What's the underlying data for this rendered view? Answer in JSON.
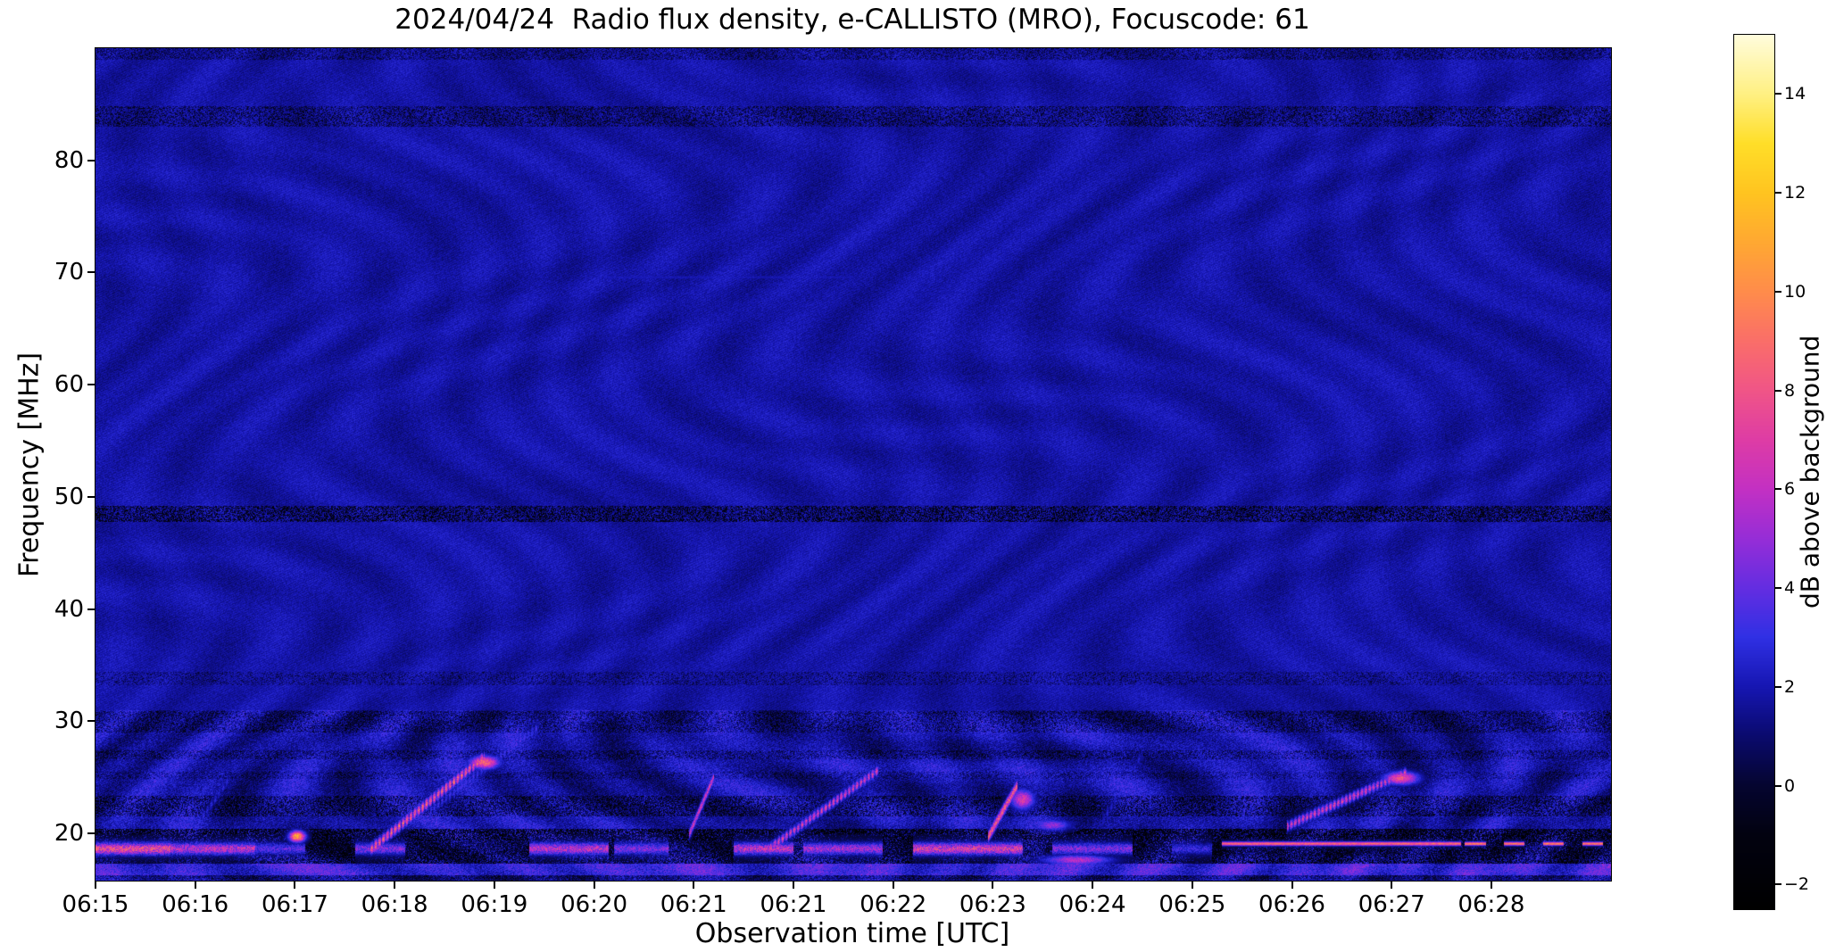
{
  "chart_data": {
    "type": "heatmap",
    "title": "2024/04/24  Radio flux density, e-CALLISTO (MRO), Focuscode: 61",
    "xlabel": "Observation time [UTC]",
    "ylabel": "Frequency [MHz]",
    "x_tick_labels": [
      "06:15",
      "06:16",
      "06:17",
      "06:18",
      "06:19",
      "06:20",
      "06:21",
      "06:21",
      "06:22",
      "06:23",
      "06:24",
      "06:25",
      "06:26",
      "06:27",
      "06:28"
    ],
    "x_span_tick_units": 15.2,
    "y_tick_values": [
      80,
      70,
      60,
      50,
      40,
      30,
      20
    ],
    "y_range_mhz": [
      15.8,
      90
    ],
    "colorbar": {
      "label": "dB above background",
      "tick_values": [
        -2,
        0,
        2,
        4,
        6,
        8,
        10,
        12,
        14
      ],
      "vmin": -2.5,
      "vmax": 15.2
    },
    "colormap_stops": [
      [
        -2.5,
        0,
        0,
        0
      ],
      [
        -1,
        2,
        2,
        16
      ],
      [
        0,
        5,
        5,
        48
      ],
      [
        1,
        10,
        10,
        110
      ],
      [
        2,
        22,
        22,
        178
      ],
      [
        3,
        48,
        48,
        228
      ],
      [
        4,
        100,
        45,
        225
      ],
      [
        5,
        150,
        45,
        215
      ],
      [
        6,
        195,
        48,
        195
      ],
      [
        7,
        222,
        60,
        165
      ],
      [
        8,
        240,
        85,
        135
      ],
      [
        9,
        250,
        110,
        105
      ],
      [
        10,
        255,
        140,
        75
      ],
      [
        11,
        255,
        168,
        50
      ],
      [
        12,
        255,
        196,
        32
      ],
      [
        13,
        255,
        222,
        40
      ],
      [
        14,
        255,
        240,
        130
      ],
      [
        15.2,
        255,
        252,
        220
      ]
    ],
    "background_level_db": 1.8,
    "features": {
      "dark_rows": [
        [
          89.0,
          90.0,
          1.2,
          0.5
        ],
        [
          83.0,
          84.9,
          1.6,
          0.45
        ],
        [
          47.8,
          49.2,
          2.4,
          0.55
        ],
        [
          33.2,
          34.4,
          1.1,
          0.35
        ],
        [
          29.0,
          30.9,
          1.4,
          0.45
        ],
        [
          26.6,
          27.4,
          1.3,
          0.4
        ],
        [
          24.8,
          25.5,
          1.0,
          0.35
        ],
        [
          21.5,
          23.3,
          1.9,
          0.5
        ],
        [
          19.35,
          20.35,
          2.8,
          0.75
        ],
        [
          17.95,
          19.35,
          2.0,
          0.8
        ],
        [
          17.25,
          17.95,
          2.4,
          0.6
        ],
        [
          15.8,
          16.25,
          1.2,
          0.5
        ]
      ],
      "bright_rows": [
        [
          16.25,
          17.25,
          1.3
        ]
      ],
      "lines": [
        {
          "f": 19.05,
          "th": 0.18,
          "u0": 11.3,
          "u1": 13.7,
          "I": 10,
          "dash": false
        },
        {
          "f": 19.05,
          "th": 0.16,
          "u0": 13.7,
          "u1": 15.2,
          "I": 11,
          "dash": true
        },
        {
          "f": 69.6,
          "th": 0.22,
          "u0": 5.0,
          "u1": 7.6,
          "I": 2.3,
          "dash": false
        }
      ],
      "bursts": [
        {
          "u0": 2.75,
          "f0": 18.5,
          "u1": 3.9,
          "f1": 26.8,
          "I": 11,
          "th": 0.5,
          "dot": true
        },
        {
          "u0": 3.35,
          "f0": 22.0,
          "u1": 4.45,
          "f1": 29.5,
          "I": 4,
          "th": 0.6,
          "dot": true
        },
        {
          "u0": 5.95,
          "f0": 19.8,
          "u1": 6.2,
          "f1": 25.0,
          "I": 8,
          "th": 0.45,
          "dot": false
        },
        {
          "u0": 6.75,
          "f0": 18.6,
          "u1": 7.85,
          "f1": 25.6,
          "I": 9,
          "th": 0.45,
          "dot": true
        },
        {
          "u0": 8.95,
          "f0": 19.6,
          "u1": 9.25,
          "f1": 24.3,
          "I": 10,
          "th": 0.5,
          "dot": false
        },
        {
          "u0": 11.95,
          "f0": 20.6,
          "u1": 13.15,
          "f1": 25.4,
          "I": 9,
          "th": 0.45,
          "dot": true
        },
        {
          "u0": 1.0,
          "f0": 20.5,
          "u1": 1.35,
          "f1": 25.0,
          "I": 3.5,
          "th": 0.5,
          "dot": true
        },
        {
          "u0": 10.1,
          "f0": 21.0,
          "u1": 10.5,
          "f1": 27.0,
          "I": 3.0,
          "th": 0.6,
          "dot": true
        }
      ],
      "blobs": [
        {
          "u": 2.02,
          "f": 19.7,
          "ru": 0.08,
          "rf": 0.5,
          "I": 13
        },
        {
          "u": 3.9,
          "f": 26.3,
          "ru": 0.15,
          "rf": 0.6,
          "I": 10
        },
        {
          "u": 9.3,
          "f": 23.0,
          "ru": 0.12,
          "rf": 0.9,
          "I": 8
        },
        {
          "u": 9.6,
          "f": 20.7,
          "ru": 0.18,
          "rf": 0.5,
          "I": 6
        },
        {
          "u": 9.85,
          "f": 17.6,
          "ru": 0.35,
          "rf": 0.45,
          "I": 7
        },
        {
          "u": 13.1,
          "f": 24.9,
          "ru": 0.18,
          "rf": 0.6,
          "I": 9
        }
      ],
      "band": {
        "f_center": 18.6,
        "f_sigma": 0.55,
        "segments": [
          [
            0.0,
            0.75,
            10
          ],
          [
            0.75,
            1.6,
            8
          ],
          [
            1.6,
            2.1,
            5
          ],
          [
            2.6,
            3.1,
            6
          ],
          [
            4.35,
            5.15,
            8
          ],
          [
            5.2,
            5.75,
            6
          ],
          [
            6.4,
            7.0,
            8
          ],
          [
            7.1,
            7.9,
            7
          ],
          [
            8.2,
            9.3,
            9
          ],
          [
            9.6,
            10.4,
            6
          ],
          [
            10.8,
            11.2,
            4
          ]
        ]
      }
    }
  }
}
